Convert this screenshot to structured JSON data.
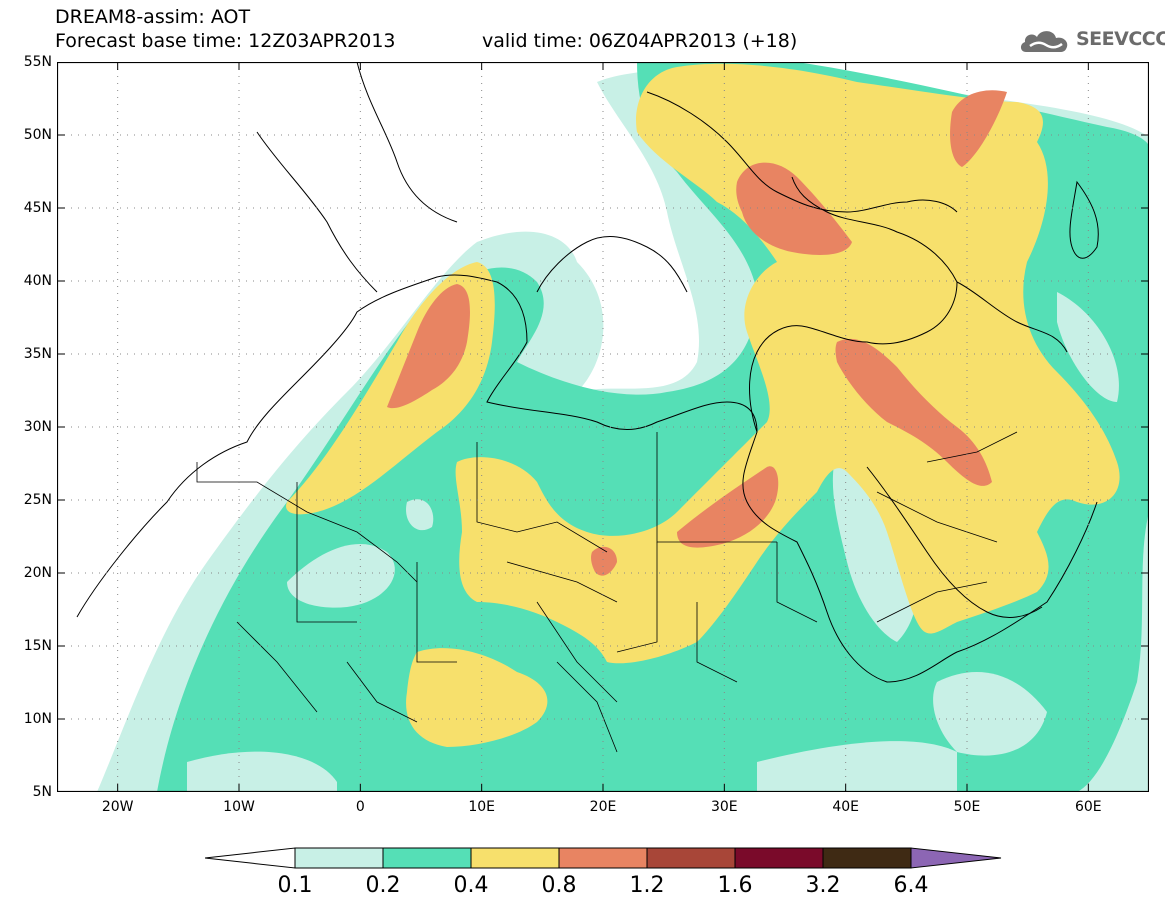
{
  "header": {
    "line1": "DREAM8-assim: AOT",
    "line2": "Forecast base time: 12Z03APR2013",
    "valid_time": "valid time: 06Z04APR2013 (+18)"
  },
  "logo": {
    "text": "SEEVCCC",
    "icon": "cloud-icon"
  },
  "map": {
    "extent": {
      "lon_min": -25,
      "lon_max": 65,
      "lat_min": 5,
      "lat_max": 55
    },
    "lat_ticks": [
      {
        "value": 55,
        "label": "55N"
      },
      {
        "value": 50,
        "label": "50N"
      },
      {
        "value": 45,
        "label": "45N"
      },
      {
        "value": 40,
        "label": "40N"
      },
      {
        "value": 35,
        "label": "35N"
      },
      {
        "value": 30,
        "label": "30N"
      },
      {
        "value": 25,
        "label": "25N"
      },
      {
        "value": 20,
        "label": "20N"
      },
      {
        "value": 15,
        "label": "15N"
      },
      {
        "value": 10,
        "label": "10N"
      },
      {
        "value": 5,
        "label": "5N"
      }
    ],
    "lon_ticks": [
      {
        "value": -20,
        "label": "20W"
      },
      {
        "value": -10,
        "label": "10W"
      },
      {
        "value": 0,
        "label": "0"
      },
      {
        "value": 10,
        "label": "10E"
      },
      {
        "value": 20,
        "label": "20E"
      },
      {
        "value": 30,
        "label": "30E"
      },
      {
        "value": 40,
        "label": "40E"
      },
      {
        "value": 50,
        "label": "50E"
      },
      {
        "value": 60,
        "label": "60E"
      }
    ]
  },
  "colorbar": {
    "levels": [
      "0.1",
      "0.2",
      "0.4",
      "0.8",
      "1.2",
      "1.6",
      "3.2",
      "6.4"
    ],
    "colors": [
      "#ffffff",
      "#c8f0e6",
      "#55dfb6",
      "#f7e06c",
      "#e88462",
      "#a84638",
      "#7a0a2a",
      "#3f2a14",
      "#8c66b4"
    ]
  },
  "colors": {
    "level_01_02": "#c8f0e6",
    "level_02_04": "#55dfb6",
    "level_04_08": "#f7e06c",
    "level_08_12": "#e88462"
  }
}
